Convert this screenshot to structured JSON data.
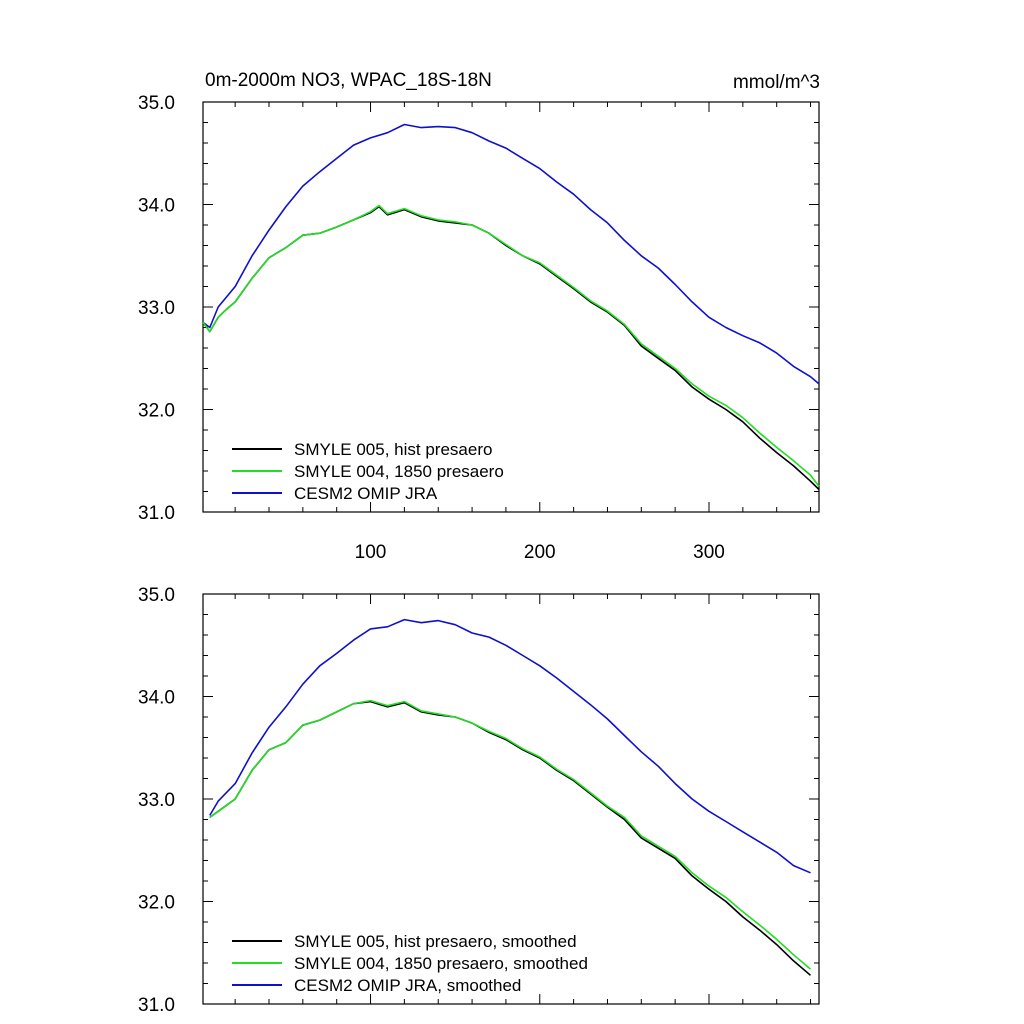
{
  "chart_data": [
    {
      "type": "line",
      "title": "0m-2000m NO3, WPAC_18S-18N",
      "units": "mmol/m^3",
      "xlim": [
        1,
        365
      ],
      "ylim": [
        31.0,
        35.0
      ],
      "x_ticks": [
        100,
        200,
        300
      ],
      "y_ticks": [
        "31.0",
        "32.0",
        "33.0",
        "34.0",
        "35.0"
      ],
      "show_x_tick_labels": true,
      "legend_position": "bottom-left",
      "series": [
        {
          "name": "SMYLE 005, hist presaero",
          "color": "#000000",
          "x": [
            1,
            5,
            10,
            15,
            20,
            30,
            40,
            50,
            60,
            70,
            80,
            90,
            100,
            105,
            110,
            120,
            130,
            140,
            150,
            160,
            170,
            180,
            190,
            200,
            210,
            220,
            230,
            240,
            250,
            260,
            270,
            280,
            290,
            300,
            310,
            320,
            330,
            340,
            350,
            360,
            365
          ],
          "y": [
            32.85,
            32.76,
            32.9,
            32.98,
            33.05,
            33.28,
            33.48,
            33.58,
            33.7,
            33.72,
            33.78,
            33.85,
            33.92,
            33.98,
            33.9,
            33.95,
            33.88,
            33.84,
            33.82,
            33.8,
            33.72,
            33.6,
            33.5,
            33.42,
            33.3,
            33.18,
            33.05,
            32.95,
            32.82,
            32.62,
            32.5,
            32.38,
            32.22,
            32.1,
            32.0,
            31.88,
            31.72,
            31.58,
            31.45,
            31.3,
            31.22
          ]
        },
        {
          "name": "SMYLE 004, 1850 presaero",
          "color": "#22dd22",
          "x": [
            1,
            5,
            10,
            15,
            20,
            30,
            40,
            50,
            60,
            70,
            80,
            90,
            100,
            105,
            110,
            120,
            130,
            140,
            150,
            160,
            170,
            180,
            190,
            200,
            210,
            220,
            230,
            240,
            250,
            260,
            270,
            280,
            290,
            300,
            310,
            320,
            330,
            340,
            350,
            360,
            365
          ],
          "y": [
            32.85,
            32.76,
            32.9,
            32.98,
            33.05,
            33.28,
            33.48,
            33.58,
            33.7,
            33.72,
            33.78,
            33.85,
            33.93,
            33.99,
            33.91,
            33.96,
            33.89,
            33.85,
            33.83,
            33.8,
            33.72,
            33.61,
            33.5,
            33.43,
            33.31,
            33.19,
            33.06,
            32.96,
            32.83,
            32.64,
            32.52,
            32.4,
            32.25,
            32.13,
            32.04,
            31.92,
            31.77,
            31.63,
            31.5,
            31.36,
            31.25
          ]
        },
        {
          "name": "CESM2 OMIP JRA",
          "color": "#1010cc",
          "x": [
            1,
            5,
            10,
            15,
            20,
            30,
            40,
            50,
            60,
            70,
            80,
            90,
            100,
            110,
            120,
            130,
            140,
            150,
            160,
            170,
            180,
            190,
            200,
            210,
            220,
            230,
            240,
            250,
            260,
            270,
            280,
            290,
            300,
            310,
            320,
            330,
            340,
            350,
            360,
            365
          ],
          "y": [
            32.85,
            32.8,
            33.0,
            33.1,
            33.2,
            33.5,
            33.75,
            33.98,
            34.18,
            34.32,
            34.45,
            34.58,
            34.65,
            34.7,
            34.78,
            34.75,
            34.76,
            34.75,
            34.7,
            34.62,
            34.55,
            34.45,
            34.35,
            34.22,
            34.1,
            33.95,
            33.82,
            33.65,
            33.5,
            33.38,
            33.22,
            33.05,
            32.9,
            32.8,
            32.72,
            32.65,
            32.55,
            32.42,
            32.32,
            32.25
          ]
        }
      ]
    },
    {
      "type": "line",
      "title": "",
      "xlim": [
        1,
        365
      ],
      "ylim": [
        31.0,
        35.0
      ],
      "x_ticks": [
        100,
        200,
        300
      ],
      "y_ticks": [
        "31.0",
        "32.0",
        "33.0",
        "34.0",
        "35.0"
      ],
      "show_x_tick_labels": false,
      "legend_position": "bottom-left",
      "series": [
        {
          "name": "SMYLE 005, hist presaero, smoothed",
          "color": "#000000",
          "x": [
            5,
            10,
            20,
            30,
            40,
            50,
            60,
            70,
            80,
            90,
            100,
            110,
            120,
            130,
            140,
            150,
            160,
            170,
            180,
            190,
            200,
            210,
            220,
            230,
            240,
            250,
            260,
            270,
            280,
            290,
            300,
            310,
            320,
            330,
            340,
            350,
            360
          ],
          "y": [
            32.82,
            32.88,
            33.0,
            33.28,
            33.48,
            33.55,
            33.72,
            33.77,
            33.85,
            33.93,
            33.95,
            33.9,
            33.94,
            33.85,
            33.82,
            33.8,
            33.74,
            33.65,
            33.58,
            33.48,
            33.4,
            33.28,
            33.18,
            33.05,
            32.92,
            32.8,
            32.62,
            32.52,
            32.42,
            32.25,
            32.12,
            32.0,
            31.85,
            31.72,
            31.58,
            31.42,
            31.28
          ]
        },
        {
          "name": "SMYLE 004, 1850 presaero, smoothed",
          "color": "#22dd22",
          "x": [
            5,
            10,
            20,
            30,
            40,
            50,
            60,
            70,
            80,
            90,
            100,
            110,
            120,
            130,
            140,
            150,
            160,
            170,
            180,
            190,
            200,
            210,
            220,
            230,
            240,
            250,
            260,
            270,
            280,
            290,
            300,
            310,
            320,
            330,
            340,
            350,
            360
          ],
          "y": [
            32.82,
            32.88,
            33.0,
            33.28,
            33.48,
            33.55,
            33.72,
            33.77,
            33.85,
            33.93,
            33.96,
            33.91,
            33.95,
            33.86,
            33.83,
            33.8,
            33.74,
            33.66,
            33.59,
            33.49,
            33.41,
            33.29,
            33.19,
            33.06,
            32.93,
            32.82,
            32.64,
            32.54,
            32.44,
            32.28,
            32.15,
            32.04,
            31.9,
            31.77,
            31.63,
            31.48,
            31.34
          ]
        },
        {
          "name": "CESM2 OMIP JRA, smoothed",
          "color": "#1010cc",
          "x": [
            5,
            10,
            20,
            30,
            40,
            50,
            60,
            70,
            80,
            90,
            100,
            110,
            120,
            130,
            140,
            150,
            160,
            170,
            180,
            190,
            200,
            210,
            220,
            230,
            240,
            250,
            260,
            270,
            280,
            290,
            300,
            310,
            320,
            330,
            340,
            350,
            360
          ],
          "y": [
            32.84,
            32.98,
            33.15,
            33.45,
            33.7,
            33.9,
            34.12,
            34.3,
            34.42,
            34.55,
            34.66,
            34.68,
            34.75,
            34.72,
            34.74,
            34.7,
            34.62,
            34.58,
            34.5,
            34.4,
            34.3,
            34.18,
            34.05,
            33.92,
            33.78,
            33.62,
            33.46,
            33.32,
            33.15,
            33.0,
            32.88,
            32.78,
            32.68,
            32.58,
            32.48,
            32.35,
            32.28
          ]
        }
      ]
    }
  ]
}
